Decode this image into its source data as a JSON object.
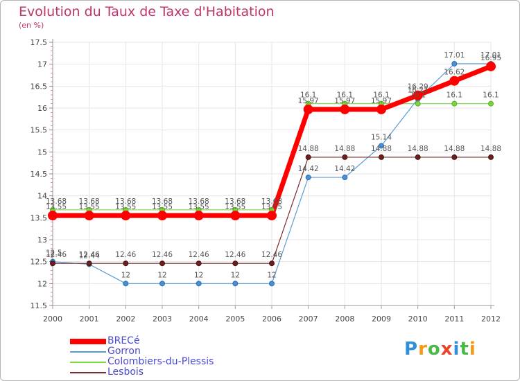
{
  "title": "Evolution du Taux de Taxe d'Habitation",
  "subtitle": "(en %)",
  "chart_data": {
    "type": "line",
    "title": "Evolution du Taux de Taxe d'Habitation",
    "ylabel": "(en %)",
    "xlabel": "",
    "ylim": [
      11.5,
      17.5
    ],
    "yticks": [
      11.5,
      12,
      12.5,
      13,
      13.5,
      14,
      14.5,
      15,
      15.5,
      16,
      16.5,
      17,
      17.5
    ],
    "categories": [
      "2000",
      "2001",
      "2002",
      "2003",
      "2004",
      "2005",
      "2006",
      "2007",
      "2008",
      "2009",
      "2010",
      "2011",
      "2012"
    ],
    "series": [
      {
        "name": "BRECé",
        "color": "#ff0000",
        "values": [
          13.55,
          13.55,
          13.55,
          13.55,
          13.55,
          13.55,
          13.55,
          15.97,
          15.97,
          15.97,
          16.29,
          16.62,
          16.95
        ]
      },
      {
        "name": "Gorron",
        "color": "#5b9bd5",
        "values": [
          12.5,
          12.44,
          12,
          12,
          12,
          12,
          12,
          14.42,
          14.42,
          15.14,
          16.21,
          17.01,
          17.01
        ]
      },
      {
        "name": "Colombiers-du-Plessis",
        "color": "#7ad83a",
        "values": [
          13.68,
          13.68,
          13.68,
          13.68,
          13.68,
          13.68,
          13.68,
          16.1,
          16.1,
          16.1,
          16.1,
          16.1,
          16.1
        ]
      },
      {
        "name": "Lesbois",
        "color": "#7a2a2a",
        "values": [
          12.46,
          12.46,
          12.46,
          12.46,
          12.46,
          12.46,
          12.46,
          14.88,
          14.88,
          14.88,
          14.88,
          14.88,
          14.88
        ]
      }
    ]
  },
  "legend": [
    {
      "label": "BRECé",
      "color": "#ff0000"
    },
    {
      "label": "Gorron",
      "color": "#5b9bd5"
    },
    {
      "label": "Colombiers-du-Plessis",
      "color": "#7ad83a"
    },
    {
      "label": "Lesbois",
      "color": "#7a2a2a"
    }
  ],
  "logo": {
    "letters": [
      "P",
      "r",
      "o",
      "x",
      "i",
      "t",
      "i"
    ],
    "colors": [
      "#2f8fd8",
      "#f29a1a",
      "#4cb848",
      "#e8452c",
      "#2f8fd8",
      "#4cb848",
      "#f29a1a"
    ]
  }
}
